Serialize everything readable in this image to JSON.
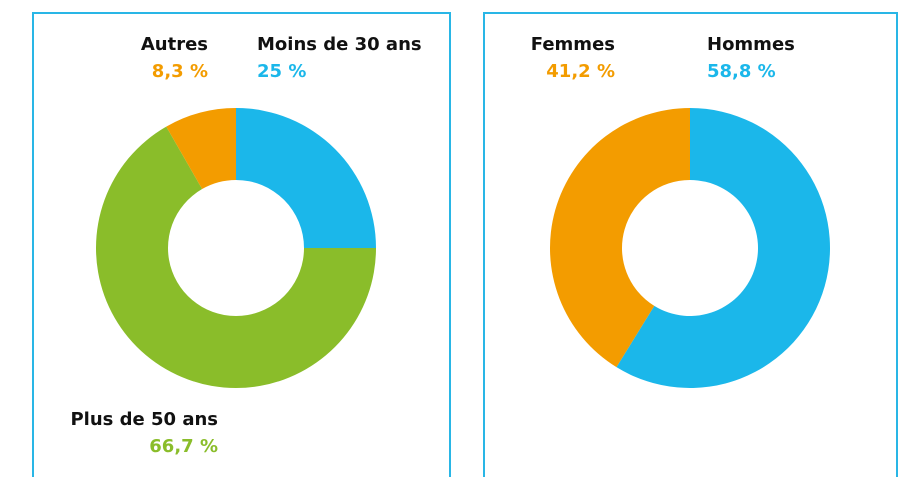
{
  "chart_data": [
    {
      "type": "pie",
      "donut": true,
      "categories": [
        "Moins de 30 ans",
        "Plus de 50 ans",
        "Autres"
      ],
      "values": [
        25,
        66.7,
        8.3
      ],
      "value_labels": [
        "25 %",
        "66,7 %",
        "8,3 %"
      ],
      "colors": [
        "#1bb7ea",
        "#8abd2a",
        "#f39c00"
      ]
    },
    {
      "type": "pie",
      "donut": true,
      "categories": [
        "Hommes",
        "Femmes"
      ],
      "values": [
        58.8,
        41.2
      ],
      "value_labels": [
        "58,8 %",
        "41,2 %"
      ],
      "colors": [
        "#1bb7ea",
        "#f39c00"
      ]
    }
  ]
}
